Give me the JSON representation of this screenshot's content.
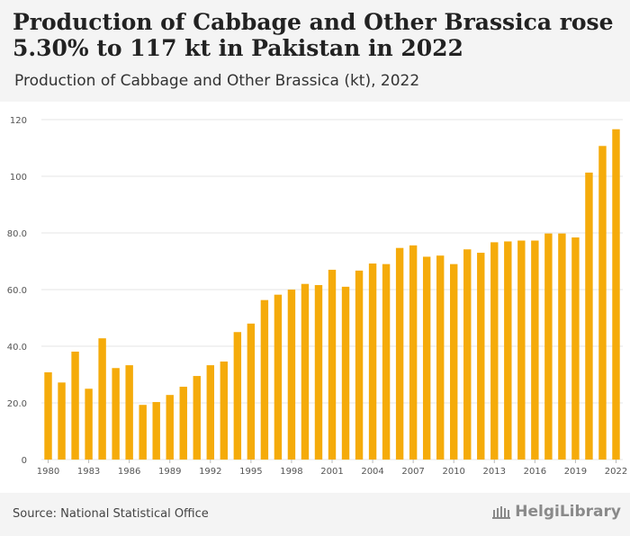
{
  "header": {
    "title": "Production of Cabbage and Other Brassica rose 5.30% to 117 kt in Pakistan in 2022",
    "subtitle": "Production of Cabbage and Other Brassica (kt), 2022"
  },
  "footer": {
    "source": "Source: National Statistical Office",
    "brand": "HelgiLibrary"
  },
  "colors": {
    "bar": "#f5ab0a",
    "grid": "#e6e6e6",
    "axis_text": "#555555"
  },
  "chart_data": {
    "type": "bar",
    "title": "",
    "xlabel": "",
    "ylabel": "",
    "ylim": [
      0,
      120
    ],
    "y_ticks": [
      0,
      20,
      40,
      60,
      80,
      100,
      120
    ],
    "y_tick_labels": [
      "0",
      "20.0",
      "40.0",
      "60.0",
      "80.0",
      "100",
      "120"
    ],
    "x_tick_labels": [
      "1980",
      "1983",
      "1986",
      "1989",
      "1992",
      "1995",
      "1998",
      "2001",
      "2004",
      "2007",
      "2010",
      "2013",
      "2016",
      "2019",
      "2022"
    ],
    "categories": [
      1980,
      1981,
      1982,
      1983,
      1984,
      1985,
      1986,
      1987,
      1988,
      1989,
      1990,
      1991,
      1992,
      1993,
      1994,
      1995,
      1996,
      1997,
      1998,
      1999,
      2000,
      2001,
      2002,
      2003,
      2004,
      2005,
      2006,
      2007,
      2008,
      2009,
      2010,
      2011,
      2012,
      2013,
      2014,
      2015,
      2016,
      2017,
      2018,
      2019,
      2020,
      2021,
      2022
    ],
    "values": [
      30.8,
      27.2,
      38.1,
      25.0,
      42.8,
      32.3,
      33.3,
      19.3,
      20.3,
      22.8,
      25.7,
      29.5,
      33.3,
      34.6,
      45.0,
      48.0,
      56.3,
      58.2,
      60.0,
      62.0,
      61.6,
      67.0,
      61.0,
      66.7,
      69.2,
      69.0,
      74.7,
      75.6,
      71.6,
      72.0,
      69.0,
      74.2,
      73.0,
      76.7,
      77.0,
      77.3,
      77.3,
      79.8,
      79.8,
      78.4,
      101.3,
      110.7,
      116.6
    ],
    "grid": true,
    "legend": "none"
  }
}
